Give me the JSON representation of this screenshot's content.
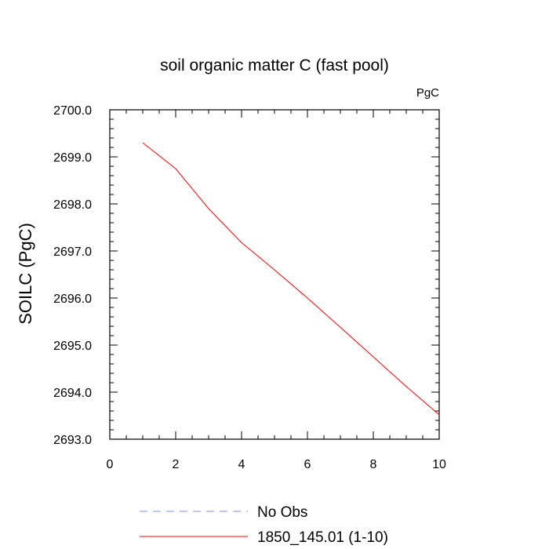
{
  "chart_data": {
    "type": "line",
    "title": "soil organic matter C (fast pool)",
    "units_label": "PgC",
    "ylabel": "SOILC  (PgC)",
    "xlabel": "",
    "xlim": [
      0,
      10
    ],
    "ylim": [
      2693.0,
      2700.0
    ],
    "x_ticks": [
      0,
      2,
      4,
      6,
      8,
      10
    ],
    "x_tick_labels": [
      "0",
      "2",
      "4",
      "6",
      "8",
      "10"
    ],
    "y_ticks": [
      2693.0,
      2694.0,
      2695.0,
      2696.0,
      2697.0,
      2698.0,
      2699.0,
      2700.0
    ],
    "y_tick_labels": [
      "2693.0",
      "2694.0",
      "2695.0",
      "2696.0",
      "2697.0",
      "2698.0",
      "2699.0",
      "2700.0"
    ],
    "grid": false,
    "legend_position": "bottom",
    "series": [
      {
        "name": "1850_145.01 (1-10)",
        "color": "#ff0000",
        "dash": "solid",
        "x": [
          1,
          2,
          3,
          4,
          5,
          6,
          7,
          8,
          9,
          10
        ],
        "y": [
          2699.3,
          2698.75,
          2697.9,
          2697.18,
          2696.6,
          2696.0,
          2695.38,
          2694.75,
          2694.12,
          2693.52
        ]
      }
    ],
    "legend": [
      {
        "label": "No Obs",
        "color": "#8888ff",
        "dash": "dashed"
      },
      {
        "label": "1850_145.01 (1-10)",
        "color": "#ff0000",
        "dash": "solid"
      }
    ]
  }
}
